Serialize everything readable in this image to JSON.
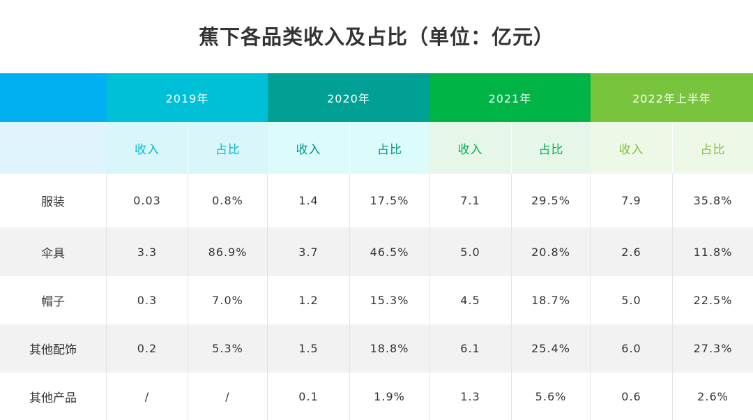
{
  "title": "蕉下各品类收入及占比（单位：亿元）",
  "colors": {
    "corner": "#00b0f0",
    "y2019": "#00c0d8",
    "y2020": "#00a094",
    "y2021": "#00b445",
    "y2022": "#78c43c"
  },
  "years": [
    "2019年",
    "2020年",
    "2021年",
    "2022年上半年"
  ],
  "sub_headers": {
    "income": "收入",
    "share": "占比"
  },
  "rows": [
    {
      "label": "服装",
      "values": [
        "0.03",
        "0.8%",
        "1.4",
        "17.5%",
        "7.1",
        "29.5%",
        "7.9",
        "35.8%"
      ]
    },
    {
      "label": "伞具",
      "values": [
        "3.3",
        "86.9%",
        "3.7",
        "46.5%",
        "5.0",
        "20.8%",
        "2.6",
        "11.8%"
      ]
    },
    {
      "label": "帽子",
      "values": [
        "0.3",
        "7.0%",
        "1.2",
        "15.3%",
        "4.5",
        "18.7%",
        "5.0",
        "22.5%"
      ]
    },
    {
      "label": "其他配饰",
      "values": [
        "0.2",
        "5.3%",
        "1.5",
        "18.8%",
        "6.1",
        "25.4%",
        "6.0",
        "27.3%"
      ]
    },
    {
      "label": "其他产品",
      "values": [
        "/",
        "/",
        "0.1",
        "1.9%",
        "1.3",
        "5.6%",
        "0.6",
        "2.6%"
      ]
    }
  ]
}
